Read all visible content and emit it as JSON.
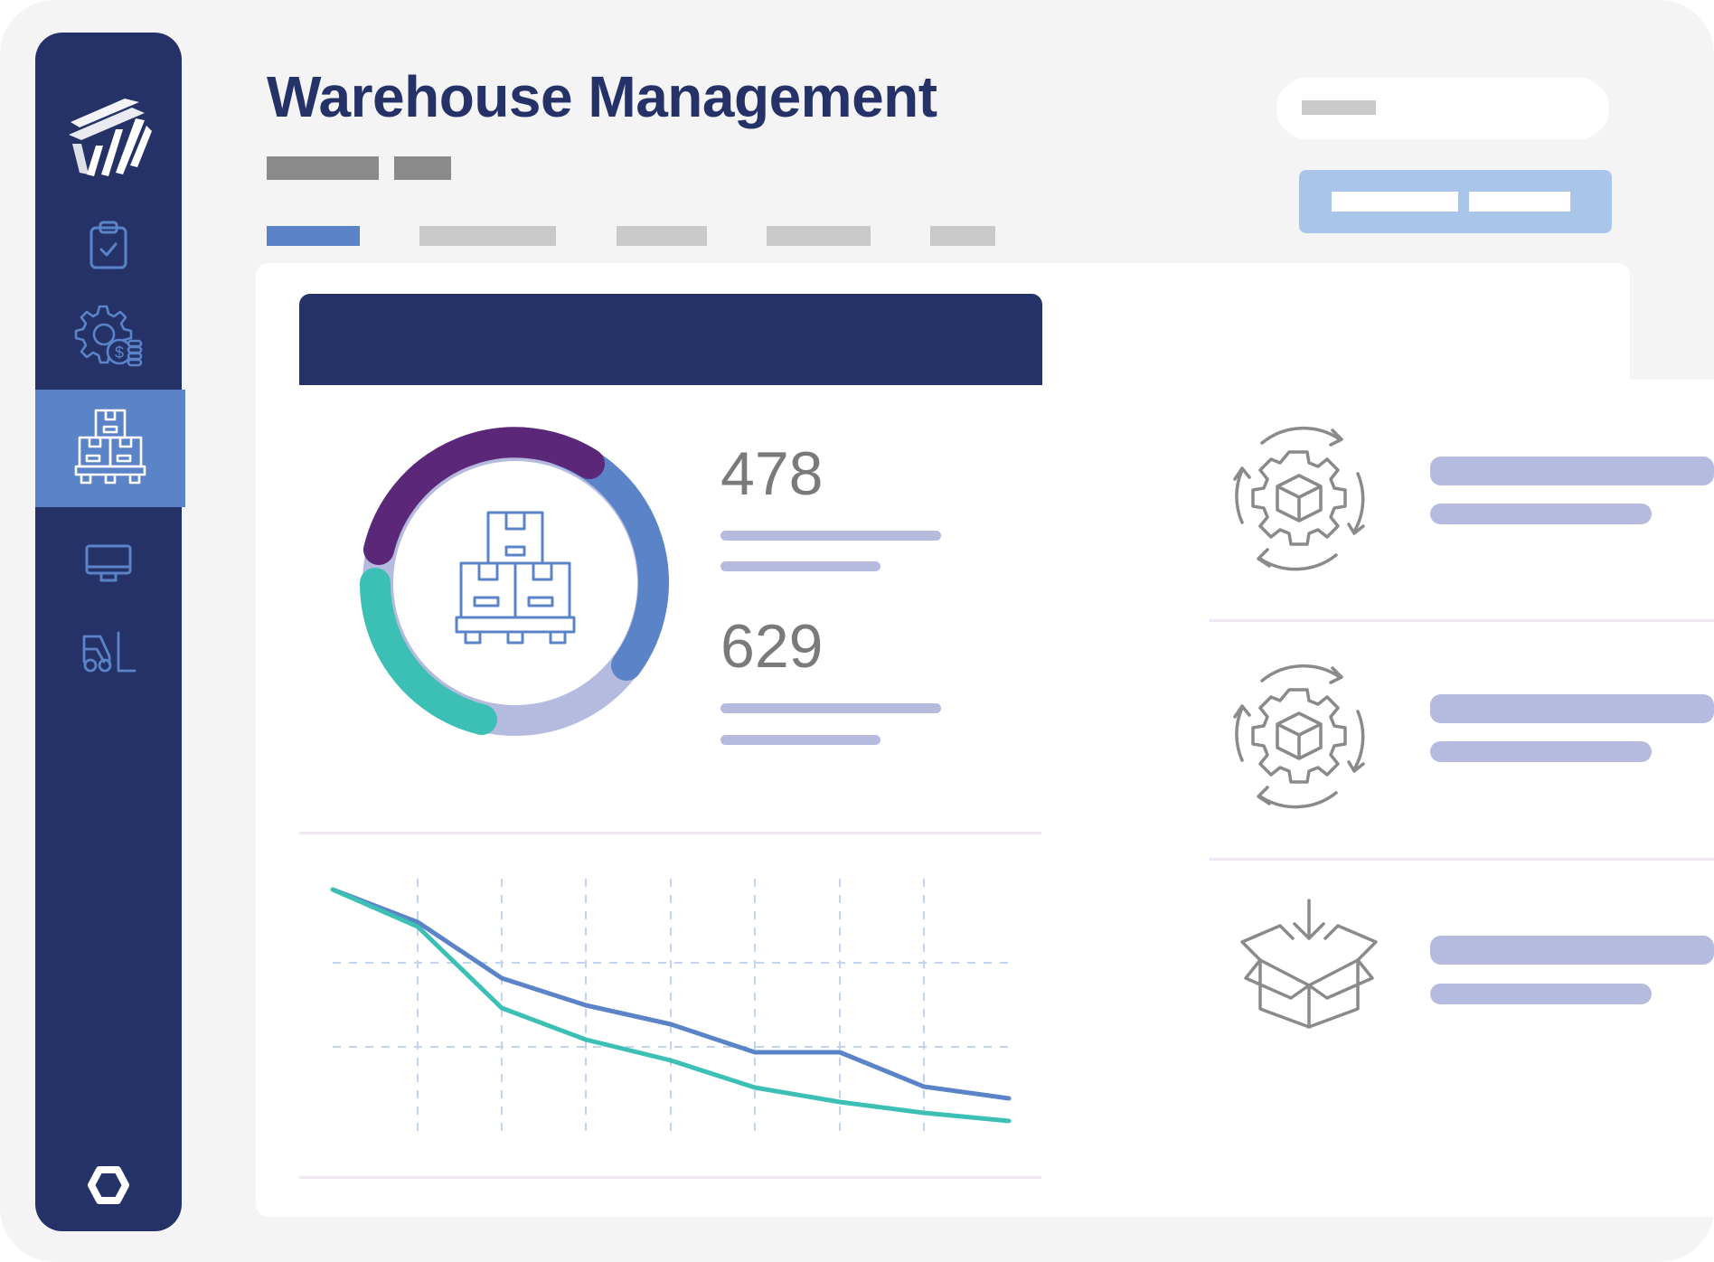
{
  "app": {
    "title": "Warehouse Management"
  },
  "sidebar": {
    "items": [
      {
        "icon": "clipboard-check-icon"
      },
      {
        "icon": "gear-coins-icon"
      },
      {
        "icon": "pallet-boxes-icon",
        "active": true
      },
      {
        "icon": "monitor-icon"
      },
      {
        "icon": "forklift-icon"
      }
    ],
    "footer_icon": "hexagon-icon"
  },
  "summary": {
    "stat_1": "478",
    "stat_2": "629"
  },
  "colors": {
    "navy": "#243268",
    "accent_blue": "#5b84c8",
    "purple": "#5b2778",
    "teal": "#3cbfb4",
    "lavender": "#b5badf",
    "light_blue": "#a9c6ea"
  },
  "activity": [
    {
      "icon": "gear-cycle-box-icon"
    },
    {
      "icon": "gear-cycle-box-icon"
    },
    {
      "icon": "box-receive-icon"
    }
  ]
}
